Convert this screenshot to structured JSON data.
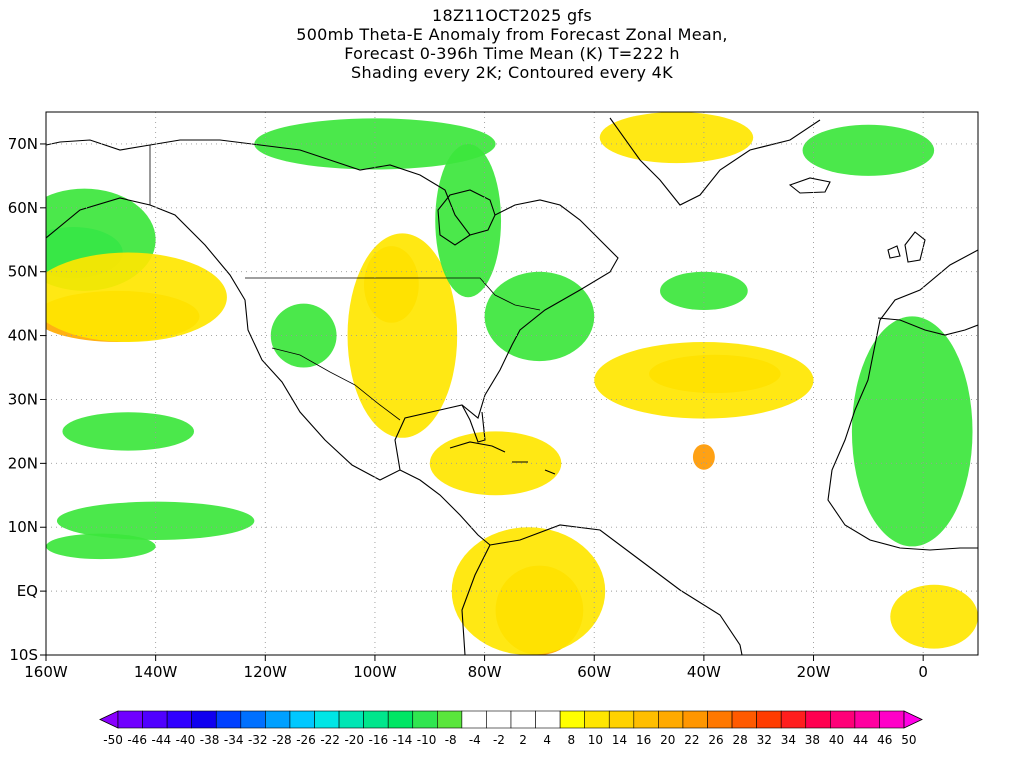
{
  "titles": [
    "18Z11OCT2025 gfs",
    "500mb Theta-E Anomaly from Forecast Zonal Mean,",
    "Forecast 0-396h Time Mean (K) T=222 h",
    "Shading every 2K; Contoured every 4K"
  ],
  "map": {
    "lon_range": [
      -160,
      10
    ],
    "lat_range": [
      -10,
      75
    ],
    "lon_ticks": [
      {
        "lon": -160,
        "label": "160W"
      },
      {
        "lon": -140,
        "label": "140W"
      },
      {
        "lon": -120,
        "label": "120W"
      },
      {
        "lon": -100,
        "label": "100W"
      },
      {
        "lon": -80,
        "label": "80W"
      },
      {
        "lon": -60,
        "label": "60W"
      },
      {
        "lon": -40,
        "label": "40W"
      },
      {
        "lon": -20,
        "label": "20W"
      },
      {
        "lon": 0,
        "label": "0"
      }
    ],
    "lat_ticks": [
      {
        "lat": 70,
        "label": "70N"
      },
      {
        "lat": 60,
        "label": "60N"
      },
      {
        "lat": 50,
        "label": "50N"
      },
      {
        "lat": 40,
        "label": "40N"
      },
      {
        "lat": 30,
        "label": "30N"
      },
      {
        "lat": 20,
        "label": "20N"
      },
      {
        "lat": 10,
        "label": "10N"
      },
      {
        "lat": 0,
        "label": "EQ"
      },
      {
        "lat": -10,
        "label": "10S"
      }
    ],
    "grid_lines": "dotted",
    "features": [
      {
        "name": "north-pacific-cold-anomaly",
        "color": "#00e6b8",
        "lon": -155,
        "lat": 53,
        "rx": 9,
        "ry": 4
      },
      {
        "name": "north-pacific-green",
        "color": "#3ce63c",
        "lon": -153,
        "lat": 55,
        "rx": 13,
        "ry": 8
      },
      {
        "name": "ne-pacific-warm-band",
        "color": "#ffaa00",
        "lon": -147,
        "lat": 43,
        "rx": 15,
        "ry": 4
      },
      {
        "name": "ne-pacific-warm-outer",
        "color": "#ffe600",
        "lon": -145,
        "lat": 46,
        "rx": 18,
        "ry": 7
      },
      {
        "name": "great-plains-warm",
        "color": "#ffaa00",
        "lon": -97,
        "lat": 48,
        "rx": 5,
        "ry": 6
      },
      {
        "name": "central-us-warm",
        "color": "#ffe600",
        "lon": -95,
        "lat": 40,
        "rx": 10,
        "ry": 16
      },
      {
        "name": "great-basin-cool",
        "color": "#3ce63c",
        "lon": -113,
        "lat": 40,
        "rx": 6,
        "ry": 5
      },
      {
        "name": "hudson-bay-cool",
        "color": "#3ce63c",
        "lon": -83,
        "lat": 58,
        "rx": 6,
        "ry": 12
      },
      {
        "name": "northeast-us-cool",
        "color": "#3ce63c",
        "lon": -70,
        "lat": 43,
        "rx": 10,
        "ry": 7
      },
      {
        "name": "canadian-arctic-cool",
        "color": "#3ce63c",
        "lon": -100,
        "lat": 70,
        "rx": 22,
        "ry": 4
      },
      {
        "name": "greenland-warm",
        "color": "#ffe600",
        "lon": -45,
        "lat": 71,
        "rx": 14,
        "ry": 4
      },
      {
        "name": "arctic-atlantic-cool",
        "color": "#3ce63c",
        "lon": -10,
        "lat": 69,
        "rx": 12,
        "ry": 4
      },
      {
        "name": "north-atlantic-cool",
        "color": "#3ce63c",
        "lon": -40,
        "lat": 47,
        "rx": 8,
        "ry": 3
      },
      {
        "name": "central-atlantic-warm",
        "color": "#ffaa00",
        "lon": -38,
        "lat": 34,
        "rx": 12,
        "ry": 3
      },
      {
        "name": "central-atlantic-warm-outer",
        "color": "#ffe600",
        "lon": -40,
        "lat": 33,
        "rx": 20,
        "ry": 6
      },
      {
        "name": "tropical-storm-warm",
        "color": "#ff9900",
        "lon": -40,
        "lat": 21,
        "rx": 2,
        "ry": 2
      },
      {
        "name": "caribbean-warm",
        "color": "#ffe600",
        "lon": -78,
        "lat": 20,
        "rx": 12,
        "ry": 5
      },
      {
        "name": "south-america-warm",
        "color": "#ffaa00",
        "lon": -70,
        "lat": -3,
        "rx": 8,
        "ry": 7
      },
      {
        "name": "south-america-warm-outer",
        "color": "#ffe600",
        "lon": -72,
        "lat": 0,
        "rx": 14,
        "ry": 10
      },
      {
        "name": "west-africa-cool",
        "color": "#3ce63c",
        "lon": -2,
        "lat": 25,
        "rx": 11,
        "ry": 18
      },
      {
        "name": "gulf-of-guinea-warm",
        "color": "#ffe600",
        "lon": 2,
        "lat": -4,
        "rx": 8,
        "ry": 5
      },
      {
        "name": "tropical-pacific-cool",
        "color": "#3ce63c",
        "lon": -140,
        "lat": 11,
        "rx": 18,
        "ry": 3
      },
      {
        "name": "subtropical-pacific-cool",
        "color": "#3ce63c",
        "lon": -145,
        "lat": 25,
        "rx": 12,
        "ry": 3
      },
      {
        "name": "eq-pacific-cool",
        "color": "#3ce63c",
        "lon": -150,
        "lat": 7,
        "rx": 10,
        "ry": 2
      }
    ]
  },
  "colorbar": {
    "colors": [
      "#8a00ff",
      "#7000ff",
      "#5000ff",
      "#3000ff",
      "#1000f0",
      "#0040ff",
      "#0070ff",
      "#00a0ff",
      "#00c8ff",
      "#00e6e6",
      "#00e6b4",
      "#00e68c",
      "#00e664",
      "#30e650",
      "#5ae63c",
      "#ffffff",
      "#ffffff",
      "#ffffff",
      "#ffffff",
      "#ffff00",
      "#ffe600",
      "#ffd200",
      "#ffbe00",
      "#ffaa00",
      "#ff9600",
      "#ff7800",
      "#ff5a00",
      "#ff3c00",
      "#ff1e1e",
      "#ff0050",
      "#ff0078",
      "#ff00a0",
      "#ff00c8",
      "#ff00e6"
    ],
    "labels": [
      "-50",
      "-46",
      "-44",
      "-40",
      "-38",
      "-34",
      "-32",
      "-28",
      "-26",
      "-22",
      "-20",
      "-16",
      "-14",
      "-10",
      "-8",
      "-4",
      "-2",
      "2",
      "4",
      "8",
      "10",
      "14",
      "16",
      "20",
      "22",
      "26",
      "28",
      "32",
      "34",
      "38",
      "40",
      "44",
      "46",
      "50"
    ]
  }
}
